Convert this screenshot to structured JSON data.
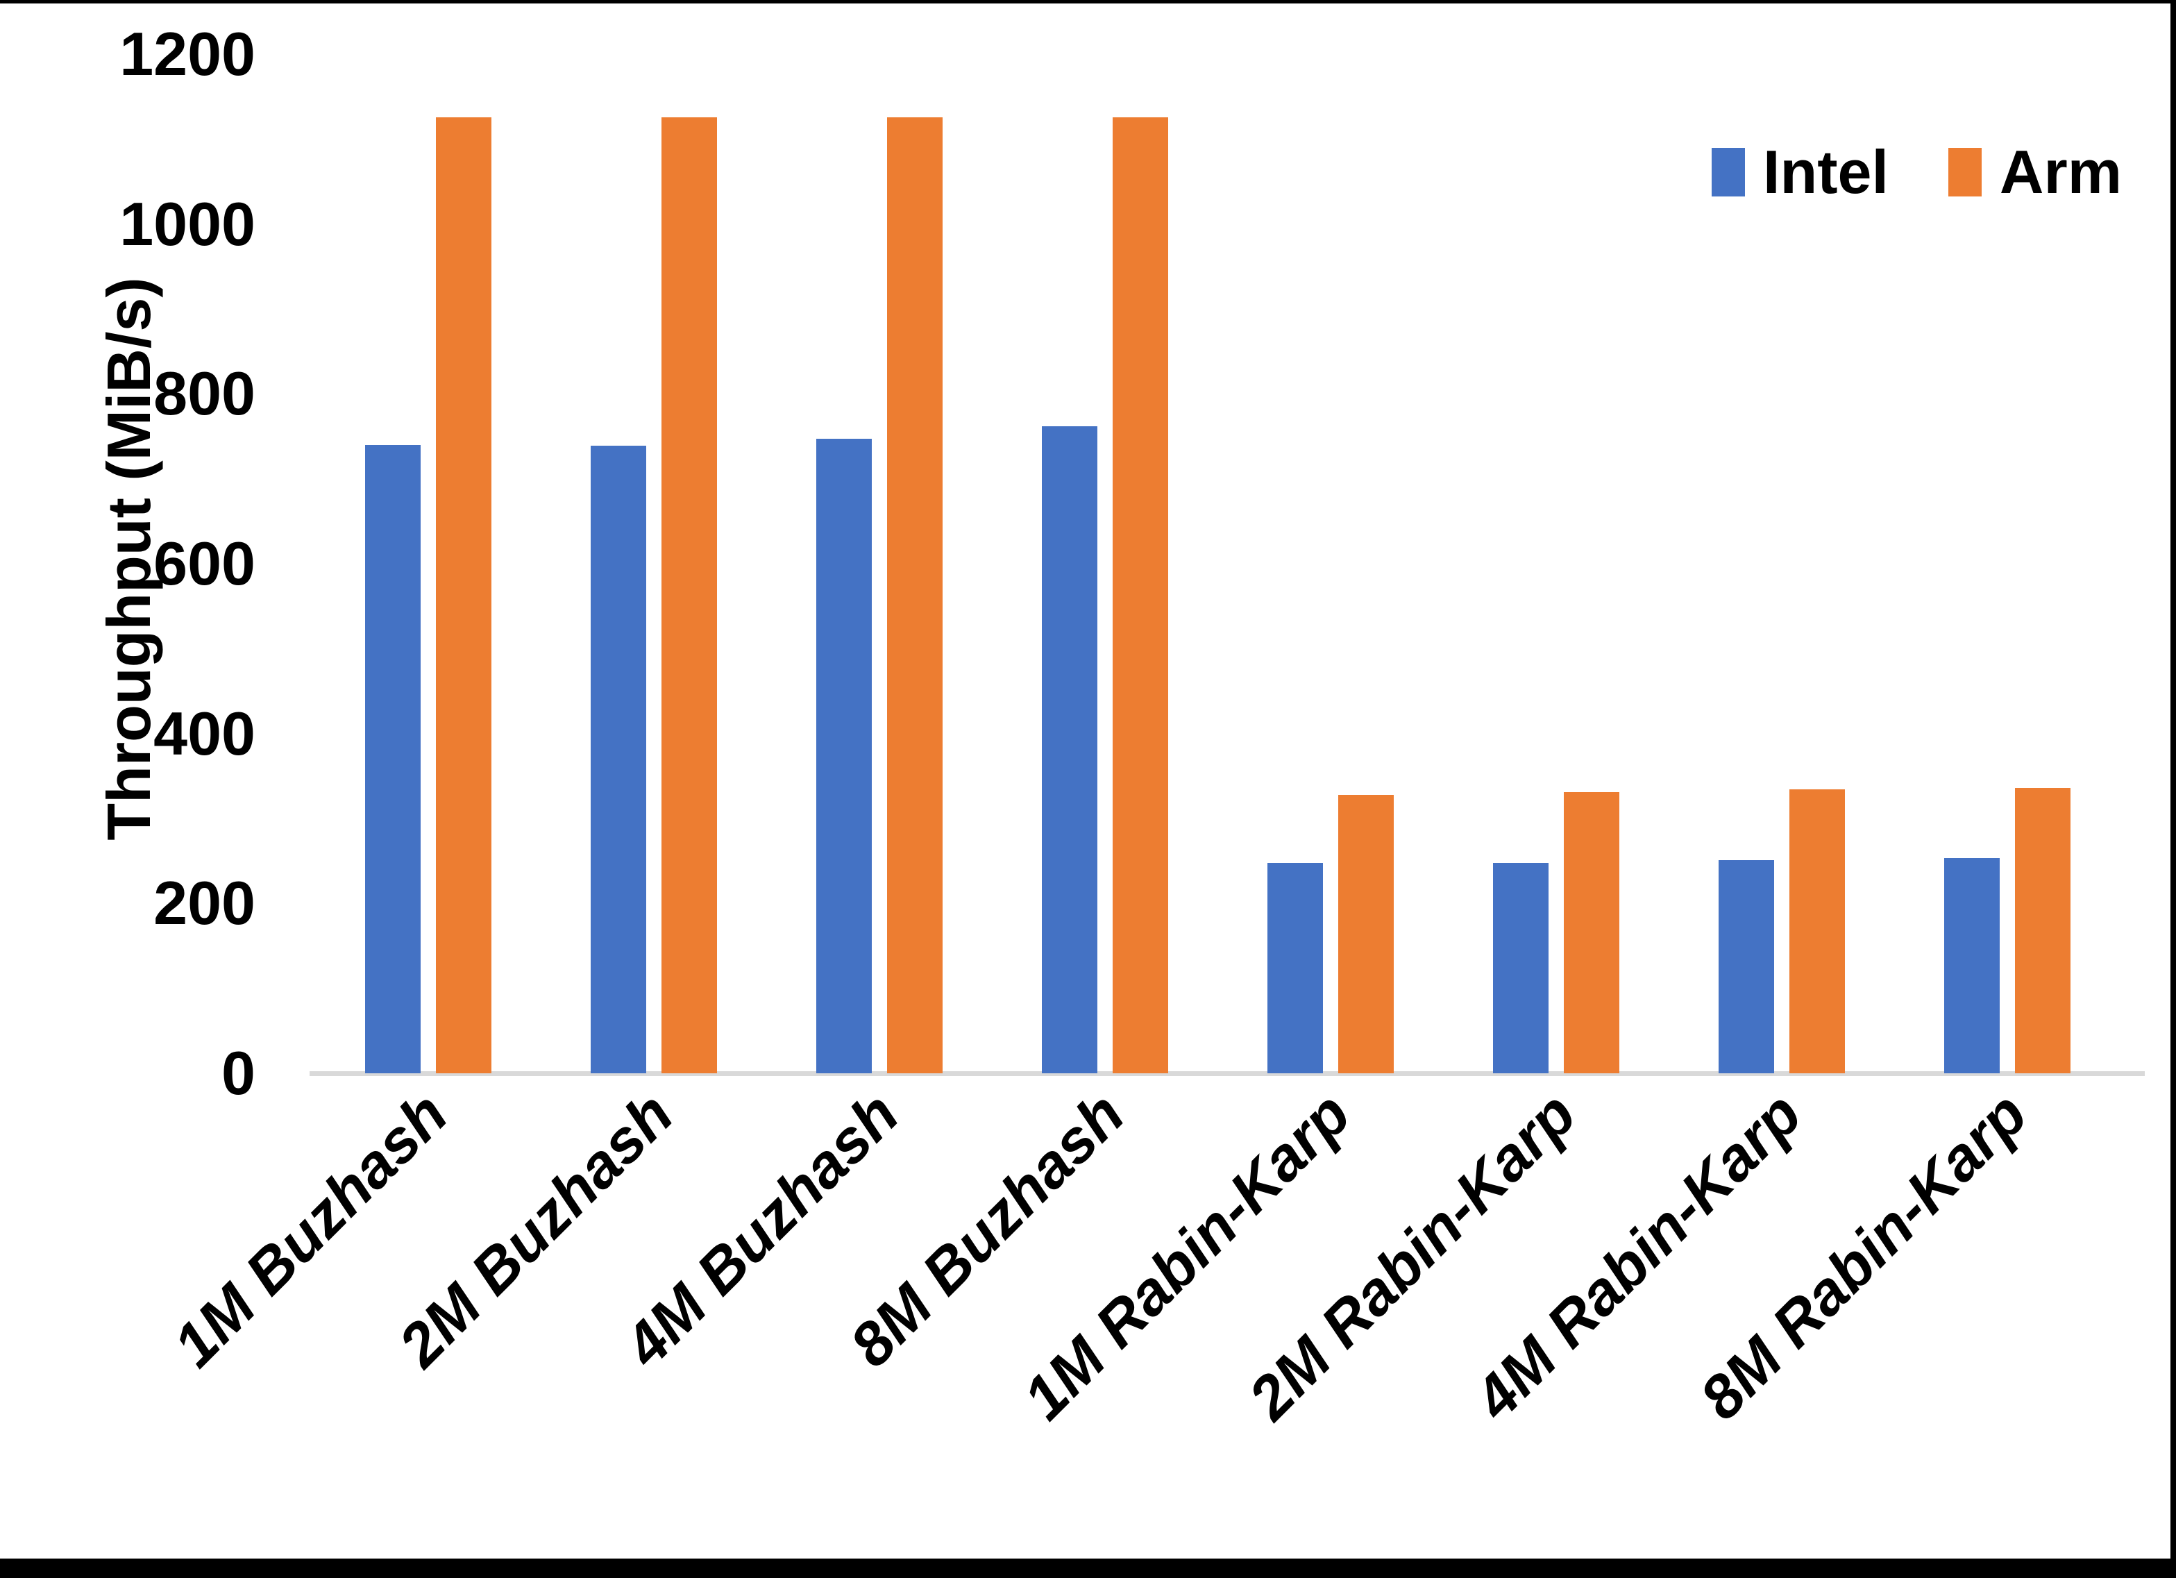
{
  "chart_data": {
    "type": "bar",
    "title": "",
    "xlabel": "",
    "ylabel": "Throughput (MiB/s)",
    "ylim": [
      0,
      1200
    ],
    "yticks": [
      0,
      200,
      400,
      600,
      800,
      1000,
      1200
    ],
    "grid": false,
    "legend_position": "top-right",
    "categories": [
      "1M Buzhash",
      "2M Buzhash",
      "4M Buzhash",
      "8M Buzhash",
      "1M Rabin-Karp",
      "2M Rabin-Karp",
      "4M Rabin-Karp",
      "8M Rabin-Karp"
    ],
    "series": [
      {
        "name": "Intel",
        "color": "#4472C4",
        "values": [
          740,
          739,
          747,
          762,
          248,
          248,
          251,
          253
        ]
      },
      {
        "name": "Arm",
        "color": "#ED7D31",
        "values": [
          1126,
          1126,
          1126,
          1126,
          328,
          331,
          334,
          336
        ]
      }
    ]
  },
  "colors": {
    "intel": "#4472C4",
    "arm": "#ED7D31",
    "axis_line": "#D9D9D9",
    "text": "#000000",
    "background": "#FFFFFF",
    "frame_border": "#000000"
  }
}
